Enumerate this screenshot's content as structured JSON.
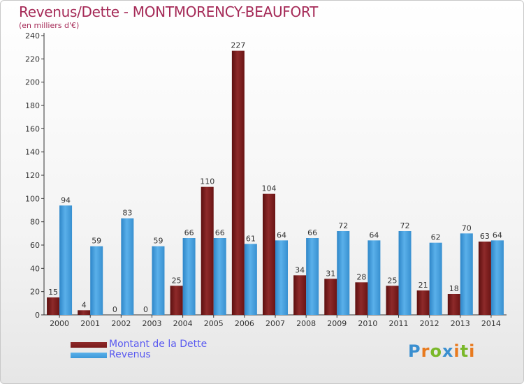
{
  "title": "Revenus/Dette - MONTMORENCY-BEAUFORT",
  "subtitle": "(en milliers d'€)",
  "brand": {
    "text": "Proxiti",
    "colors": [
      "#3a8fd0",
      "#e87a1e",
      "#7ab829",
      "#3a8fd0",
      "#e87a1e",
      "#7ab829",
      "#e87a1e"
    ]
  },
  "chart_data": {
    "type": "bar",
    "categories": [
      "2000",
      "2001",
      "2002",
      "2003",
      "2004",
      "2005",
      "2006",
      "2007",
      "2008",
      "2009",
      "2010",
      "2011",
      "2012",
      "2013",
      "2014"
    ],
    "series": [
      {
        "name": "Montant de la Dette",
        "color": "#7a1a1a",
        "values": [
          15,
          4,
          0,
          0,
          25,
          110,
          227,
          104,
          34,
          31,
          28,
          25,
          21,
          18,
          63
        ]
      },
      {
        "name": "Revenus",
        "color": "#3d98d8",
        "values": [
          94,
          59,
          83,
          59,
          66,
          66,
          61,
          64,
          66,
          72,
          64,
          72,
          62,
          70,
          64
        ]
      }
    ],
    "ylim": [
      0,
      240
    ],
    "yticks": [
      0,
      20,
      40,
      60,
      80,
      100,
      120,
      140,
      160,
      180,
      200,
      220,
      240
    ],
    "grid": false,
    "legend_position": "bottom-left"
  }
}
